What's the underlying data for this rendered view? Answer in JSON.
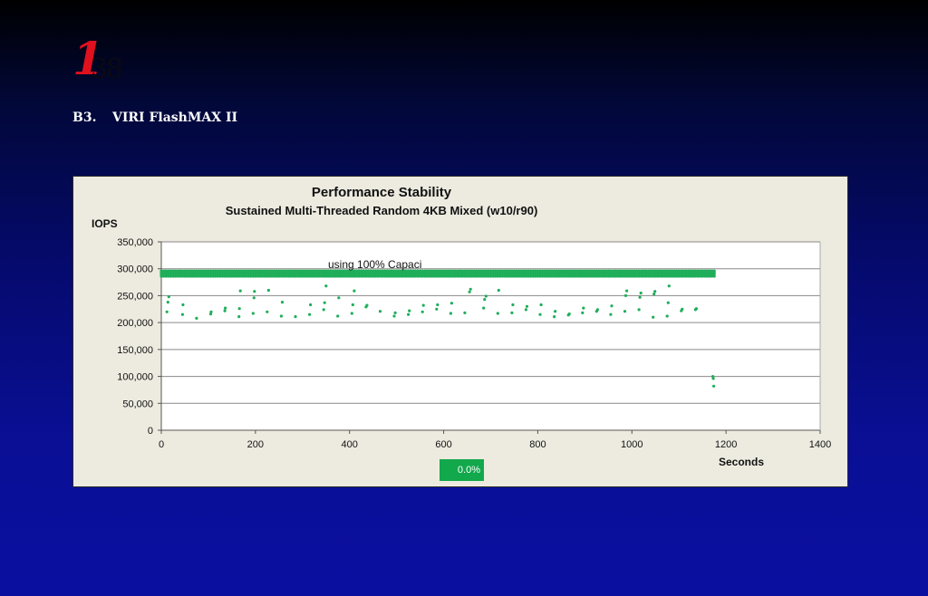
{
  "logo": {
    "numeral": "1",
    "mark": "38"
  },
  "section": {
    "number": "B3.",
    "title": "VIRI FlashMAX II"
  },
  "status_box": {
    "text": "0.0%",
    "color": "#12a84c"
  },
  "chart_data": {
    "type": "scatter",
    "title": "Performance Stability",
    "subtitle": "Sustained Multi-Threaded Random 4KB Mixed (w10/r90)",
    "ylabel": "IOPS",
    "xlabel": "Seconds",
    "annotation": "using 100% Capaci",
    "xlim": [
      0,
      1400
    ],
    "ylim": [
      0,
      350000
    ],
    "x_ticks": [
      0,
      200,
      400,
      600,
      800,
      1000,
      1200,
      1400
    ],
    "y_ticks": [
      0,
      50000,
      100000,
      150000,
      200000,
      250000,
      300000,
      350000
    ],
    "y_tick_labels": [
      "0",
      "50,000",
      "100,000",
      "150,000",
      "200,000",
      "250,000",
      "300,000",
      "350,000"
    ],
    "grid": true,
    "marker_color": "#1fae5a",
    "series": [
      {
        "band_x_range": [
          0,
          1175
        ],
        "band_values": [
          286000,
          290000,
          293000,
          296000
        ],
        "outliers": [
          {
            "x": 12,
            "y": 220000
          },
          {
            "x": 14,
            "y": 238000
          },
          {
            "x": 16,
            "y": 248000
          },
          {
            "x": 45,
            "y": 215000
          },
          {
            "x": 46,
            "y": 233000
          },
          {
            "x": 75,
            "y": 208000
          },
          {
            "x": 105,
            "y": 216000
          },
          {
            "x": 106,
            "y": 220000
          },
          {
            "x": 135,
            "y": 222000
          },
          {
            "x": 136,
            "y": 227000
          },
          {
            "x": 165,
            "y": 211000
          },
          {
            "x": 166,
            "y": 226000
          },
          {
            "x": 168,
            "y": 259000
          },
          {
            "x": 195,
            "y": 217000
          },
          {
            "x": 197,
            "y": 246000
          },
          {
            "x": 198,
            "y": 258000
          },
          {
            "x": 225,
            "y": 220000
          },
          {
            "x": 228,
            "y": 260000
          },
          {
            "x": 255,
            "y": 212000
          },
          {
            "x": 257,
            "y": 238000
          },
          {
            "x": 285,
            "y": 211000
          },
          {
            "x": 315,
            "y": 215000
          },
          {
            "x": 317,
            "y": 233000
          },
          {
            "x": 345,
            "y": 224000
          },
          {
            "x": 347,
            "y": 237000
          },
          {
            "x": 350,
            "y": 268000
          },
          {
            "x": 375,
            "y": 212000
          },
          {
            "x": 377,
            "y": 246000
          },
          {
            "x": 405,
            "y": 217000
          },
          {
            "x": 407,
            "y": 233000
          },
          {
            "x": 410,
            "y": 259000
          },
          {
            "x": 435,
            "y": 229000
          },
          {
            "x": 437,
            "y": 232000
          },
          {
            "x": 465,
            "y": 221000
          },
          {
            "x": 495,
            "y": 212000
          },
          {
            "x": 497,
            "y": 218000
          },
          {
            "x": 525,
            "y": 215000
          },
          {
            "x": 527,
            "y": 222000
          },
          {
            "x": 555,
            "y": 220000
          },
          {
            "x": 557,
            "y": 232000
          },
          {
            "x": 585,
            "y": 225000
          },
          {
            "x": 587,
            "y": 233000
          },
          {
            "x": 615,
            "y": 217000
          },
          {
            "x": 617,
            "y": 236000
          },
          {
            "x": 645,
            "y": 218000
          },
          {
            "x": 655,
            "y": 257000
          },
          {
            "x": 657,
            "y": 262000
          },
          {
            "x": 685,
            "y": 227000
          },
          {
            "x": 687,
            "y": 243000
          },
          {
            "x": 690,
            "y": 249000
          },
          {
            "x": 715,
            "y": 217000
          },
          {
            "x": 717,
            "y": 260000
          },
          {
            "x": 745,
            "y": 218000
          },
          {
            "x": 747,
            "y": 233000
          },
          {
            "x": 775,
            "y": 224000
          },
          {
            "x": 777,
            "y": 230000
          },
          {
            "x": 805,
            "y": 215000
          },
          {
            "x": 807,
            "y": 233000
          },
          {
            "x": 835,
            "y": 211000
          },
          {
            "x": 837,
            "y": 221000
          },
          {
            "x": 865,
            "y": 214000
          },
          {
            "x": 867,
            "y": 216000
          },
          {
            "x": 895,
            "y": 218000
          },
          {
            "x": 897,
            "y": 227000
          },
          {
            "x": 925,
            "y": 221000
          },
          {
            "x": 927,
            "y": 224000
          },
          {
            "x": 955,
            "y": 215000
          },
          {
            "x": 957,
            "y": 231000
          },
          {
            "x": 985,
            "y": 221000
          },
          {
            "x": 987,
            "y": 250000
          },
          {
            "x": 989,
            "y": 259000
          },
          {
            "x": 1015,
            "y": 224000
          },
          {
            "x": 1017,
            "y": 247000
          },
          {
            "x": 1019,
            "y": 255000
          },
          {
            "x": 1045,
            "y": 210000
          },
          {
            "x": 1047,
            "y": 253000
          },
          {
            "x": 1049,
            "y": 258000
          },
          {
            "x": 1075,
            "y": 212000
          },
          {
            "x": 1077,
            "y": 237000
          },
          {
            "x": 1079,
            "y": 268000
          },
          {
            "x": 1105,
            "y": 222000
          },
          {
            "x": 1107,
            "y": 225000
          },
          {
            "x": 1135,
            "y": 224000
          },
          {
            "x": 1137,
            "y": 226000
          },
          {
            "x": 1172,
            "y": 100000
          },
          {
            "x": 1173,
            "y": 96000
          },
          {
            "x": 1174,
            "y": 82000
          }
        ]
      }
    ]
  }
}
